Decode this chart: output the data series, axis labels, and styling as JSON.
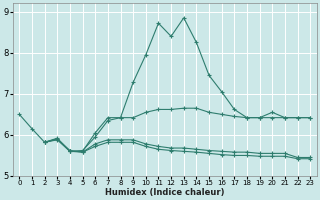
{
  "xlabel": "Humidex (Indice chaleur)",
  "ylabel": "",
  "xlim": [
    -0.5,
    23.5
  ],
  "ylim": [
    5,
    9.2
  ],
  "yticks": [
    5,
    6,
    7,
    8,
    9
  ],
  "xticks": [
    0,
    1,
    2,
    3,
    4,
    5,
    6,
    7,
    8,
    9,
    10,
    11,
    12,
    13,
    14,
    15,
    16,
    17,
    18,
    19,
    20,
    21,
    22,
    23
  ],
  "bg_color": "#cce8e8",
  "grid_color": "#b8d8d8",
  "line_color": "#2e7d6e",
  "lines": [
    {
      "x": [
        0,
        1,
        2,
        3,
        4,
        5,
        6,
        7,
        8,
        9,
        10,
        11,
        12,
        13,
        14,
        15,
        16,
        17,
        18,
        19,
        20,
        21,
        22,
        23
      ],
      "y": [
        6.5,
        6.15,
        5.82,
        5.9,
        5.6,
        5.6,
        6.05,
        6.42,
        6.42,
        7.28,
        7.95,
        8.72,
        8.4,
        8.85,
        8.25,
        7.45,
        7.05,
        6.62,
        6.42,
        6.42,
        6.55,
        6.42,
        6.42,
        6.42
      ]
    },
    {
      "x": [
        2,
        3,
        4,
        5,
        6,
        7,
        8,
        9,
        10,
        11,
        12,
        13,
        14,
        15,
        16,
        17,
        18,
        19,
        20,
        21,
        22,
        23
      ],
      "y": [
        5.82,
        5.92,
        5.6,
        5.62,
        5.95,
        6.35,
        6.42,
        6.42,
        6.55,
        6.62,
        6.62,
        6.65,
        6.65,
        6.55,
        6.5,
        6.45,
        6.42,
        6.42,
        6.42,
        6.42,
        6.42,
        6.42
      ]
    },
    {
      "x": [
        2,
        3,
        4,
        5,
        6,
        7,
        8,
        9,
        10,
        11,
        12,
        13,
        14,
        15,
        16,
        17,
        18,
        19,
        20,
        21,
        22,
        23
      ],
      "y": [
        5.82,
        5.9,
        5.62,
        5.58,
        5.78,
        5.88,
        5.88,
        5.88,
        5.78,
        5.72,
        5.68,
        5.68,
        5.65,
        5.62,
        5.6,
        5.58,
        5.58,
        5.55,
        5.55,
        5.55,
        5.45,
        5.45
      ]
    },
    {
      "x": [
        2,
        3,
        4,
        5,
        6,
        7,
        8,
        9,
        10,
        11,
        12,
        13,
        14,
        15,
        16,
        17,
        18,
        19,
        20,
        21,
        22,
        23
      ],
      "y": [
        5.82,
        5.88,
        5.6,
        5.58,
        5.72,
        5.82,
        5.82,
        5.82,
        5.72,
        5.65,
        5.62,
        5.6,
        5.58,
        5.55,
        5.52,
        5.5,
        5.5,
        5.48,
        5.48,
        5.48,
        5.42,
        5.42
      ]
    }
  ]
}
